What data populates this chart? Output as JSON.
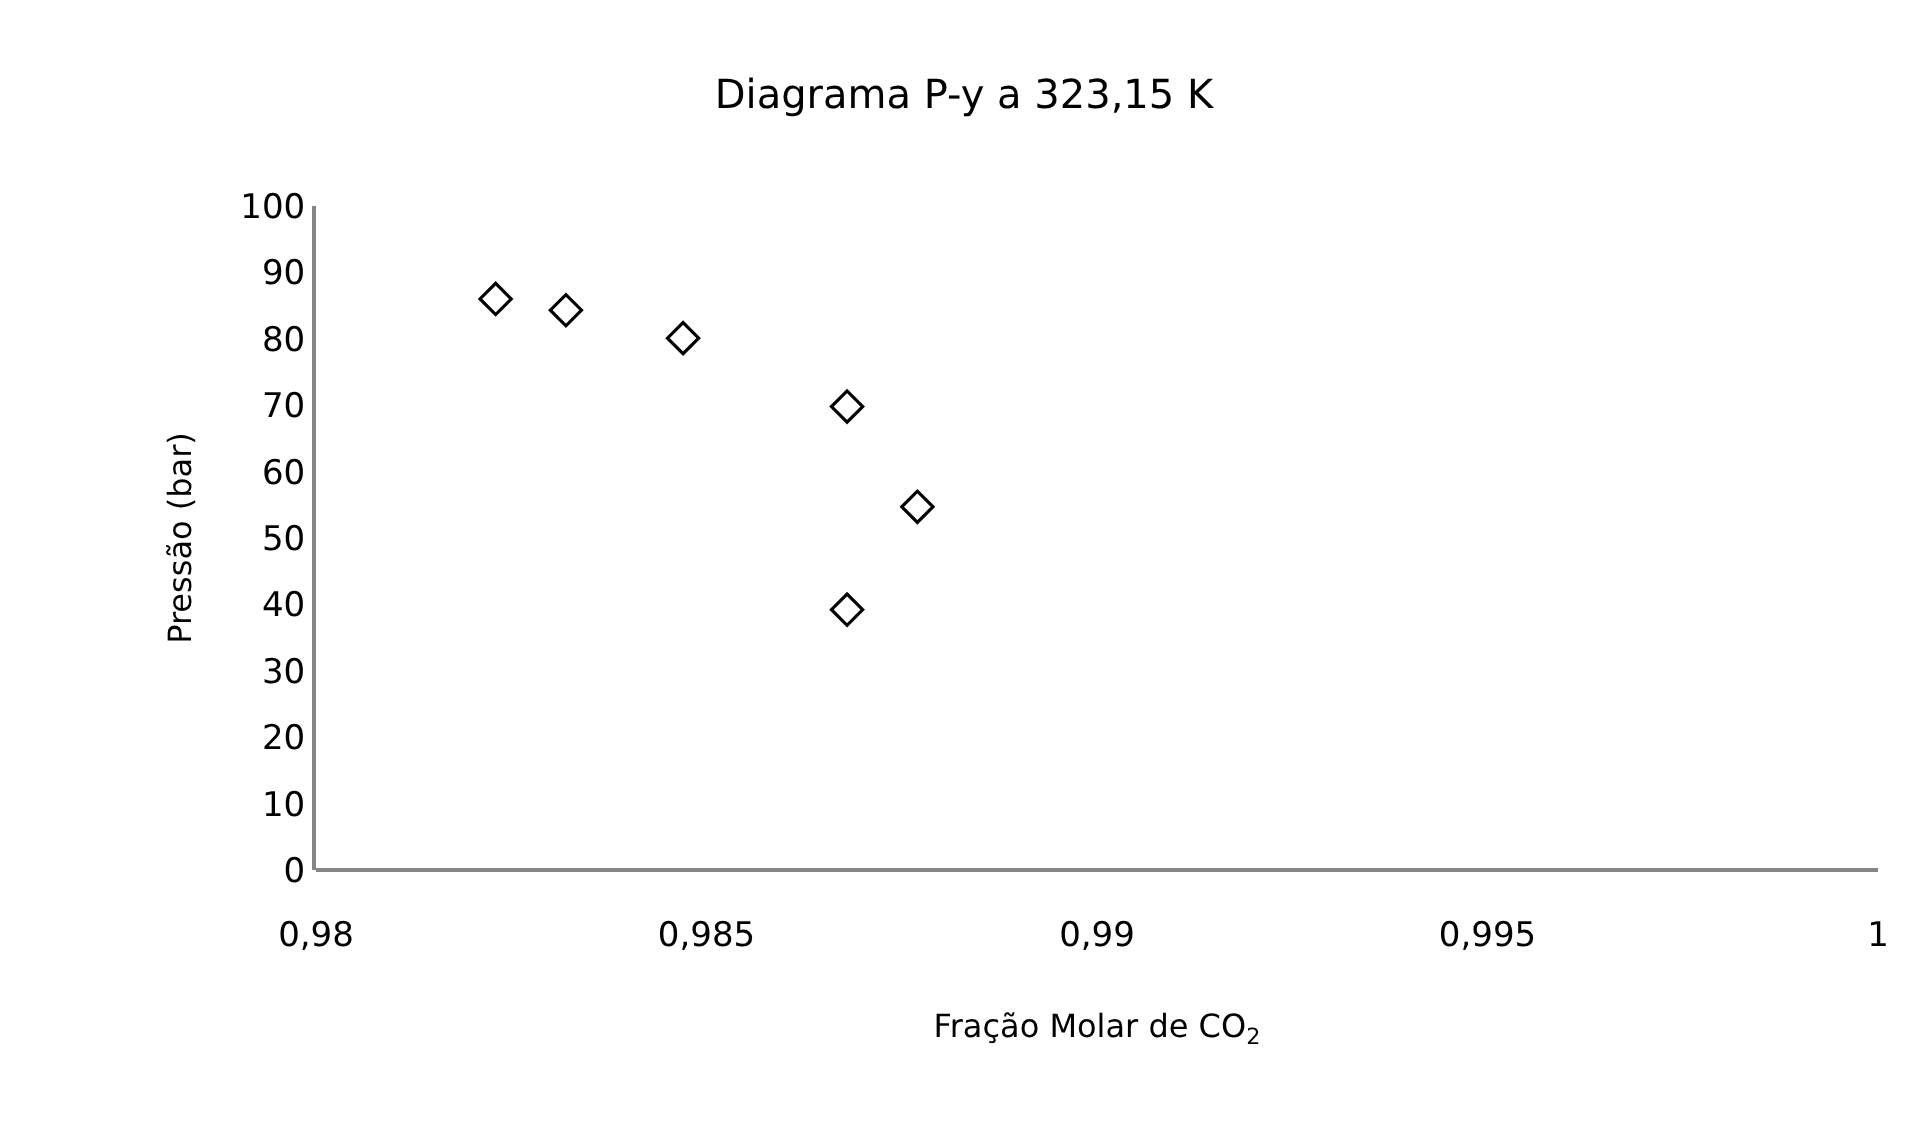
{
  "chart_data": {
    "type": "scatter",
    "title": "Diagrama P-y a 323,15 K",
    "xlabel": "Fração Molar de CO$_{2}$",
    "ylabel": "Pressão (bar)",
    "x": [
      0.9823,
      0.9832,
      0.9847,
      0.9868,
      0.9877,
      0.9868
    ],
    "series": [
      {
        "color": "#000000",
        "values": [
          86,
          84.3,
          80.1,
          69.8,
          54.7,
          39.2
        ]
      }
    ],
    "marker": "diamond",
    "grid": false,
    "xlim": [
      0.98,
      1
    ],
    "xticks": [
      {
        "value": 0.98,
        "label": "0,98"
      },
      {
        "value": 0.985,
        "label": "0,985"
      },
      {
        "value": 0.99,
        "label": "0,99"
      },
      {
        "value": 0.995,
        "label": "0,995"
      },
      1
    ],
    "ylim": [
      0,
      100
    ],
    "yticks": [
      0,
      10,
      20,
      30,
      40,
      50,
      60,
      70,
      80,
      90,
      100
    ]
  }
}
